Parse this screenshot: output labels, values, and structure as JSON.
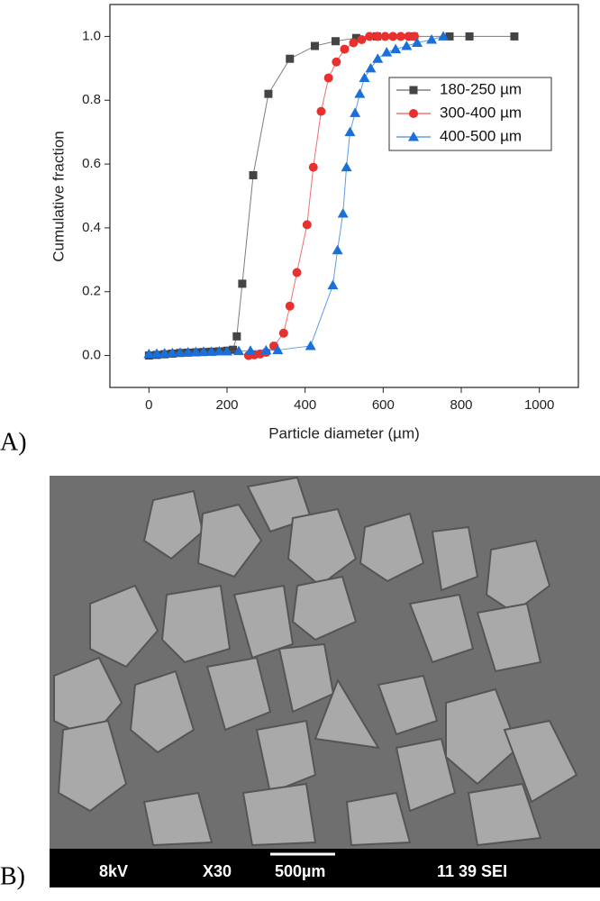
{
  "chart_data": {
    "type": "line",
    "xlabel": "Particle diameter (µm)",
    "ylabel": "Cumulative fraction",
    "xlim": [
      -100,
      1100
    ],
    "ylim": [
      -0.1,
      1.1
    ],
    "xticks": [
      0,
      200,
      400,
      600,
      800,
      1000
    ],
    "yticks": [
      {
        "value": 0,
        "label": "0.0"
      },
      {
        "value": 0.2,
        "label": "0.2"
      },
      {
        "value": 0.4,
        "label": "0.4"
      },
      {
        "value": 0.6,
        "label": "0.6"
      },
      {
        "value": 0.8,
        "label": "0.8"
      },
      {
        "value": 1,
        "label": "1.0"
      }
    ],
    "legend": "upper right",
    "series": [
      {
        "name": "180-250 µm",
        "color": "#444444",
        "marker": "square",
        "x": [
          0,
          20,
          40,
          60,
          80,
          100,
          120,
          140,
          160,
          180,
          200,
          215,
          225,
          239,
          267,
          306,
          361,
          425,
          478,
          531,
          584,
          678,
          770,
          821,
          936
        ],
        "values": [
          0,
          0.002,
          0.004,
          0.006,
          0.008,
          0.009,
          0.01,
          0.011,
          0.012,
          0.013,
          0.015,
          0.018,
          0.06,
          0.225,
          0.565,
          0.82,
          0.93,
          0.97,
          0.985,
          0.995,
          1,
          1,
          1,
          1,
          1
        ]
      },
      {
        "name": "300-400 µm",
        "color": "#e8312f",
        "marker": "circle",
        "x": [
          255,
          270,
          285,
          300,
          320,
          345,
          361,
          379,
          405,
          421,
          441,
          460,
          480,
          501,
          524,
          545,
          565,
          585,
          605,
          625,
          645,
          665,
          680
        ],
        "values": [
          0,
          0.002,
          0.005,
          0.01,
          0.03,
          0.07,
          0.155,
          0.26,
          0.41,
          0.59,
          0.765,
          0.87,
          0.92,
          0.96,
          0.98,
          0.99,
          1,
          1,
          1,
          1,
          1,
          1,
          1
        ]
      },
      {
        "name": "400-500 µm",
        "color": "#1a6fd8",
        "marker": "triangle",
        "x": [
          0,
          20,
          40,
          60,
          80,
          100,
          120,
          140,
          160,
          180,
          200,
          230,
          260,
          300,
          330,
          414,
          471,
          483,
          497,
          506,
          515,
          528,
          540,
          552,
          568,
          586,
          609,
          632,
          660,
          687,
          724,
          754
        ],
        "values": [
          0.005,
          0.006,
          0.007,
          0.008,
          0.009,
          0.01,
          0.011,
          0.012,
          0.012,
          0.013,
          0.013,
          0.014,
          0.015,
          0.016,
          0.017,
          0.03,
          0.22,
          0.33,
          0.445,
          0.59,
          0.7,
          0.76,
          0.82,
          0.87,
          0.9,
          0.93,
          0.95,
          0.96,
          0.97,
          0.98,
          0.99,
          1
        ]
      }
    ]
  },
  "panel_labels": [
    "A)",
    "B)"
  ],
  "micrograph": {
    "info": [
      "8kV",
      "X30",
      "500µm",
      "11 39 SEI"
    ]
  }
}
